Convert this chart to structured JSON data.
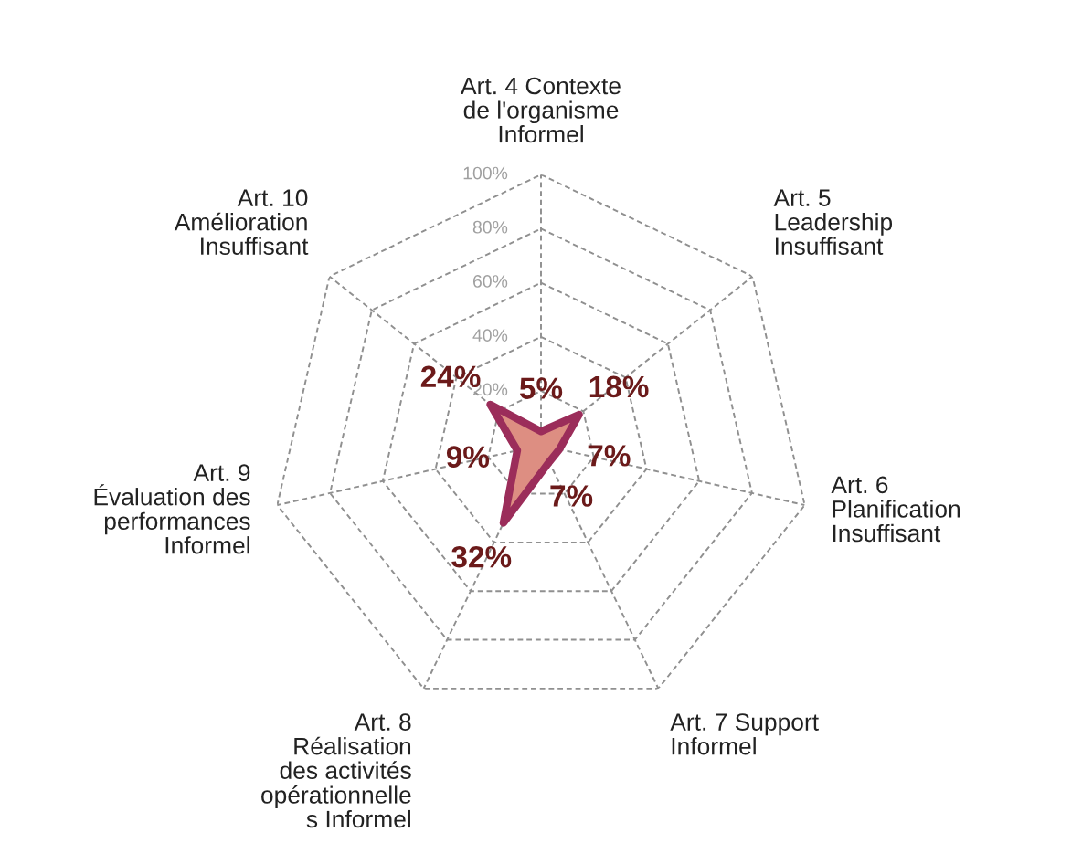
{
  "chart_data": {
    "type": "radar",
    "categories": [
      "Art. 4 Contexte\nde l'organisme\nInformel",
      "Art. 5\nLeadership\nInsuffisant",
      "Art. 6\nPlanification\nInsuffisant",
      "Art. 7 Support\nInformel",
      "Art. 8\nRéalisation\ndes activités\nopérationnelle\ns Informel",
      "Art. 9\nÉvaluation des\nperformances\nInformel",
      "Art. 10\nAmélioration\nInsuffisant"
    ],
    "series": [
      {
        "color": "#9b2d5a",
        "values": [
          5,
          18,
          7,
          7,
          32,
          9,
          24
        ]
      }
    ],
    "ylim": [
      0,
      100
    ],
    "yticks": [
      {
        "value": 20,
        "label": "20%"
      },
      {
        "value": 40,
        "label": "40%"
      },
      {
        "value": 60,
        "label": "60%"
      },
      {
        "value": 80,
        "label": "80%"
      },
      {
        "value": 100,
        "label": "100%"
      }
    ],
    "value_labels": [
      "5%",
      "18%",
      "7%",
      "7%",
      "32%",
      "9%",
      "24%"
    ],
    "grid": true,
    "marker": "none",
    "line_style": "solid"
  }
}
